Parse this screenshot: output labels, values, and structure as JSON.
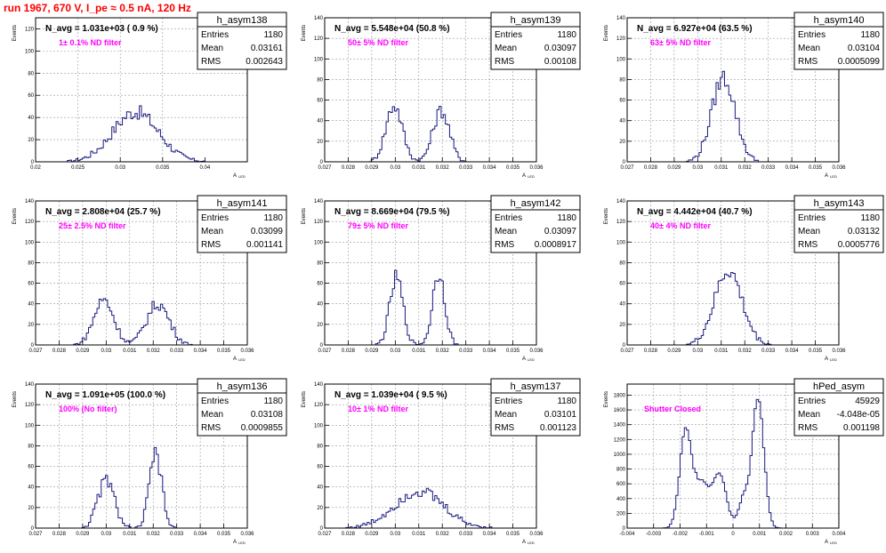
{
  "header": {
    "run_title": "run 1967,   670 V, I_pe ≈ 0.5 nA, 120 Hz"
  },
  "colors": {
    "histogram": "#1a1a80",
    "annotation": "#ff00ff",
    "title": "#ff0000",
    "frame": "#000000",
    "grid": "#999999"
  },
  "panel_common": {
    "ylabel": "Events",
    "xlabel": "A",
    "xlabel_sub": "LED",
    "stats_labels": {
      "entries": "Entries",
      "mean": "Mean",
      "rms": "RMS"
    }
  },
  "chart_data": [
    {
      "type": "bar",
      "name": "h_asym138",
      "navg": "N_avg = 1.031e+03 ( 0.9 %)",
      "annotation": "1± 0.1% ND filter",
      "stats": {
        "entries": "1180",
        "mean": "0.03161",
        "rms": "0.002643"
      },
      "xlim": [
        0.02,
        0.045
      ],
      "ylim": [
        0,
        130
      ],
      "xticks": [
        "0.02",
        "0.025",
        "0.03",
        "0.035",
        "0.04"
      ],
      "xtick_values": [
        0.02,
        0.025,
        0.03,
        0.035,
        0.04
      ],
      "yticks": [
        "0",
        "20",
        "40",
        "60",
        "80",
        "100",
        "120"
      ],
      "ytick_values": [
        0,
        20,
        40,
        60,
        80,
        100,
        120
      ],
      "peaks": [
        {
          "mu": 0.0318,
          "sigma": 0.0027,
          "amp": 45
        }
      ]
    },
    {
      "type": "bar",
      "name": "h_asym139",
      "navg": "N_avg = 5.548e+04 (50.8 %)",
      "annotation": "50± 5% ND filter",
      "stats": {
        "entries": "1180",
        "mean": "0.03097",
        "rms": "0.00108"
      },
      "xlim": [
        0.027,
        0.036
      ],
      "ylim": [
        0,
        140
      ],
      "xticks": [
        "0.027",
        "0.028",
        "0.029",
        "0.03",
        "0.031",
        "0.032",
        "0.033",
        "0.034",
        "0.035",
        "0.036"
      ],
      "xtick_values": [
        0.027,
        0.028,
        0.029,
        0.03,
        0.031,
        0.032,
        0.033,
        0.034,
        0.035,
        0.036
      ],
      "yticks": [
        "0",
        "20",
        "40",
        "60",
        "80",
        "100",
        "120",
        "140"
      ],
      "ytick_values": [
        0,
        20,
        40,
        60,
        80,
        100,
        120,
        140
      ],
      "peaks": [
        {
          "mu": 0.02995,
          "sigma": 0.00035,
          "amp": 55
        },
        {
          "mu": 0.03195,
          "sigma": 0.00035,
          "amp": 50
        }
      ]
    },
    {
      "type": "bar",
      "name": "h_asym140",
      "navg": "N_avg = 6.927e+04 (63.5 %)",
      "annotation": "63± 5% ND filter",
      "stats": {
        "entries": "1180",
        "mean": "0.03104",
        "rms": "0.0005099"
      },
      "xlim": [
        0.027,
        0.036
      ],
      "ylim": [
        0,
        140
      ],
      "xticks": [
        "0.027",
        "0.028",
        "0.029",
        "0.03",
        "0.031",
        "0.032",
        "0.033",
        "0.034",
        "0.035",
        "0.036"
      ],
      "xtick_values": [
        0.027,
        0.028,
        0.029,
        0.03,
        0.031,
        0.032,
        0.033,
        0.034,
        0.035,
        0.036
      ],
      "yticks": [
        "0",
        "20",
        "40",
        "60",
        "80",
        "100",
        "120",
        "140"
      ],
      "ytick_values": [
        0,
        20,
        40,
        60,
        80,
        100,
        120,
        140
      ],
      "peaks": [
        {
          "mu": 0.0311,
          "sigma": 0.0005,
          "amp": 82
        }
      ]
    },
    {
      "type": "bar",
      "name": "h_asym141",
      "navg": "N_avg = 2.808e+04 (25.7 %)",
      "annotation": "25± 2.5% ND filter",
      "stats": {
        "entries": "1180",
        "mean": "0.03099",
        "rms": "0.001141"
      },
      "xlim": [
        0.027,
        0.036
      ],
      "ylim": [
        0,
        140
      ],
      "xticks": [
        "0.027",
        "0.028",
        "0.029",
        "0.03",
        "0.031",
        "0.032",
        "0.033",
        "0.034",
        "0.035",
        "0.036"
      ],
      "xtick_values": [
        0.027,
        0.028,
        0.029,
        0.03,
        0.031,
        0.032,
        0.033,
        0.034,
        0.035,
        0.036
      ],
      "yticks": [
        "0",
        "20",
        "40",
        "60",
        "80",
        "100",
        "120",
        "140"
      ],
      "ytick_values": [
        0,
        20,
        40,
        60,
        80,
        100,
        120,
        140
      ],
      "peaks": [
        {
          "mu": 0.0299,
          "sigma": 0.00042,
          "amp": 44
        },
        {
          "mu": 0.0322,
          "sigma": 0.00048,
          "amp": 40
        }
      ]
    },
    {
      "type": "bar",
      "name": "h_asym142",
      "navg": "N_avg = 8.669e+04 (79.5 %)",
      "annotation": "79± 5% ND filter",
      "stats": {
        "entries": "1180",
        "mean": "0.03097",
        "rms": "0.0008917"
      },
      "xlim": [
        0.027,
        0.036
      ],
      "ylim": [
        0,
        140
      ],
      "xticks": [
        "0.027",
        "0.028",
        "0.029",
        "0.03",
        "0.031",
        "0.032",
        "0.033",
        "0.034",
        "0.035",
        "0.036"
      ],
      "xtick_values": [
        0.027,
        0.028,
        0.029,
        0.03,
        0.031,
        0.032,
        0.033,
        0.034,
        0.035,
        0.036
      ],
      "yticks": [
        "0",
        "20",
        "40",
        "60",
        "80",
        "100",
        "120",
        "140"
      ],
      "ytick_values": [
        0,
        20,
        40,
        60,
        80,
        100,
        120,
        140
      ],
      "peaks": [
        {
          "mu": 0.03005,
          "sigma": 0.00028,
          "amp": 65
        },
        {
          "mu": 0.03185,
          "sigma": 0.00026,
          "amp": 70
        }
      ]
    },
    {
      "type": "bar",
      "name": "h_asym143",
      "navg": "N_avg = 4.442e+04 (40.7 %)",
      "annotation": "40± 4% ND filter",
      "stats": {
        "entries": "1180",
        "mean": "0.03132",
        "rms": "0.0005776"
      },
      "xlim": [
        0.027,
        0.036
      ],
      "ylim": [
        0,
        140
      ],
      "xticks": [
        "0.027",
        "0.028",
        "0.029",
        "0.03",
        "0.031",
        "0.032",
        "0.033",
        "0.034",
        "0.035",
        "0.036"
      ],
      "xtick_values": [
        0.027,
        0.028,
        0.029,
        0.03,
        0.031,
        0.032,
        0.033,
        0.034,
        0.035,
        0.036
      ],
      "yticks": [
        "0",
        "20",
        "40",
        "60",
        "80",
        "100",
        "120",
        "140"
      ],
      "ytick_values": [
        0,
        20,
        40,
        60,
        80,
        100,
        120,
        140
      ],
      "peaks": [
        {
          "mu": 0.0313,
          "sigma": 0.00058,
          "amp": 72
        }
      ]
    },
    {
      "type": "bar",
      "name": "h_asym136",
      "navg": "N_avg = 1.091e+05 (100.0 %)",
      "annotation": "100% (No filter)",
      "stats": {
        "entries": "1180",
        "mean": "0.03108",
        "rms": "0.0009855"
      },
      "xlim": [
        0.027,
        0.036
      ],
      "ylim": [
        0,
        140
      ],
      "xticks": [
        "0.027",
        "0.028",
        "0.029",
        "0.03",
        "0.031",
        "0.032",
        "0.033",
        "0.034",
        "0.035",
        "0.036"
      ],
      "xtick_values": [
        0.027,
        0.028,
        0.029,
        0.03,
        0.031,
        0.032,
        0.033,
        0.034,
        0.035,
        0.036
      ],
      "yticks": [
        "0",
        "20",
        "40",
        "60",
        "80",
        "100",
        "120",
        "140"
      ],
      "ytick_values": [
        0,
        20,
        40,
        60,
        80,
        100,
        120,
        140
      ],
      "peaks": [
        {
          "mu": 0.03,
          "sigma": 0.00035,
          "amp": 47
        },
        {
          "mu": 0.0321,
          "sigma": 0.00026,
          "amp": 72
        }
      ]
    },
    {
      "type": "bar",
      "name": "h_asym137",
      "navg": "N_avg = 1.039e+04 ( 9.5 %)",
      "annotation": "10± 1% ND filter",
      "stats": {
        "entries": "1180",
        "mean": "0.03101",
        "rms": "0.001123"
      },
      "xlim": [
        0.027,
        0.036
      ],
      "ylim": [
        0,
        140
      ],
      "xticks": [
        "0.027",
        "0.028",
        "0.029",
        "0.03",
        "0.031",
        "0.032",
        "0.033",
        "0.034",
        "0.035",
        "0.036"
      ],
      "xtick_values": [
        0.027,
        0.028,
        0.029,
        0.03,
        0.031,
        0.032,
        0.033,
        0.034,
        0.035,
        0.036
      ],
      "yticks": [
        "0",
        "20",
        "40",
        "60",
        "80",
        "100",
        "120",
        "140"
      ],
      "ytick_values": [
        0,
        20,
        40,
        60,
        80,
        100,
        120,
        140
      ],
      "peaks": [
        {
          "mu": 0.031,
          "sigma": 0.00105,
          "amp": 36
        }
      ]
    },
    {
      "type": "bar",
      "name": "hPed_asym",
      "navg": "",
      "annotation": "Shutter Closed",
      "stats": {
        "entries": "45929",
        "mean": "-4.048e-05",
        "rms": "0.001198"
      },
      "xlim": [
        -0.004,
        0.004
      ],
      "ylim": [
        0,
        1950
      ],
      "xticks": [
        "-0.004",
        "-0.003",
        "-0.002",
        "-0.001",
        "0",
        "0.001",
        "0.002",
        "0.003",
        "0.004"
      ],
      "xtick_values": [
        -0.004,
        -0.003,
        -0.002,
        -0.001,
        0,
        0.001,
        0.002,
        0.003,
        0.004
      ],
      "yticks": [
        "0",
        "200",
        "400",
        "600",
        "800",
        "1000",
        "1200",
        "1400",
        "1600",
        "1800"
      ],
      "ytick_values": [
        0,
        200,
        400,
        600,
        800,
        1000,
        1200,
        1400,
        1600,
        1800
      ],
      "peaks": [
        {
          "mu": -0.0018,
          "sigma": 0.00022,
          "amp": 1250
        },
        {
          "mu": -0.0012,
          "sigma": 0.0003,
          "amp": 620
        },
        {
          "mu": -0.0005,
          "sigma": 0.00025,
          "amp": 720
        },
        {
          "mu": 0.00095,
          "sigma": 0.00022,
          "amp": 1750
        },
        {
          "mu": 0.0004,
          "sigma": 0.0002,
          "amp": 400
        }
      ]
    }
  ]
}
